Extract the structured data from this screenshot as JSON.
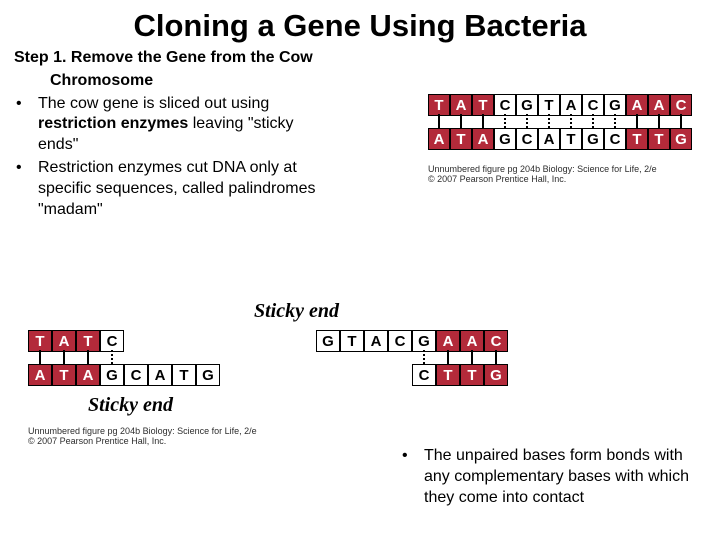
{
  "title": "Cloning a Gene Using Bacteria",
  "step": {
    "line1": "Step 1. Remove the Gene from the Cow",
    "line2": "Chromosome"
  },
  "bullets": {
    "b1a": "The cow gene is sliced out using",
    "b1b_bold": "restriction enzymes",
    "b1b_rest": " leaving \"sticky",
    "b1c": "ends\"",
    "b2a": "Restriction enzymes cut DNA only at",
    "b2b": "specific sequences, called palindromes",
    "b2c": "\"madam\""
  },
  "bottom_bullet": {
    "l1": "The unpaired bases form bonds with",
    "l2": "any complementary bases with which",
    "l3": "they come into contact"
  },
  "labels": {
    "sticky_end": "Sticky end"
  },
  "caption": {
    "l1": "Unnumbered figure pg 204b Biology: Science for Life, 2/e",
    "l2": "© 2007 Pearson Prentice Hall, Inc."
  },
  "colors": {
    "red": "#b32a3a",
    "white": "#ffffff",
    "black": "#000000"
  },
  "dna": {
    "top_full": {
      "top": [
        "T",
        "A",
        "T",
        "C",
        "G",
        "T",
        "A",
        "C",
        "G",
        "A",
        "A",
        "C"
      ],
      "bottom": [
        "A",
        "T",
        "A",
        "G",
        "C",
        "A",
        "T",
        "G",
        "C",
        "T",
        "T",
        "G"
      ],
      "colors_top": [
        "red",
        "red",
        "red",
        "white",
        "white",
        "white",
        "white",
        "white",
        "white",
        "red",
        "red",
        "red"
      ],
      "colors_bottom": [
        "red",
        "red",
        "red",
        "white",
        "white",
        "white",
        "white",
        "white",
        "white",
        "red",
        "red",
        "red"
      ],
      "conn": [
        "solid",
        "solid",
        "solid",
        "dashed",
        "dashed",
        "dashed",
        "dashed",
        "dashed",
        "dashed",
        "solid",
        "solid",
        "solid"
      ],
      "base_w": 22
    },
    "left_frag": {
      "top": [
        "T",
        "A",
        "T",
        "C",
        "",
        "",
        "",
        ""
      ],
      "bottom": [
        "A",
        "T",
        "A",
        "G",
        "C",
        "A",
        "T",
        "G"
      ],
      "colors_top": [
        "red",
        "red",
        "red",
        "white",
        "gap",
        "gap",
        "gap",
        "gap"
      ],
      "colors_bottom": [
        "red",
        "red",
        "red",
        "white",
        "white",
        "white",
        "white",
        "white"
      ],
      "conn": [
        "solid",
        "solid",
        "solid",
        "dashed",
        "none",
        "none",
        "none",
        "none"
      ],
      "base_w": 24
    },
    "right_frag": {
      "top": [
        "G",
        "T",
        "A",
        "C",
        "G",
        "A",
        "A",
        "C"
      ],
      "bottom": [
        "",
        "",
        "",
        "",
        "C",
        "T",
        "T",
        "G"
      ],
      "colors_top": [
        "white",
        "white",
        "white",
        "white",
        "white",
        "red",
        "red",
        "red"
      ],
      "colors_bottom": [
        "gap",
        "gap",
        "gap",
        "gap",
        "white",
        "red",
        "red",
        "red"
      ],
      "conn": [
        "none",
        "none",
        "none",
        "none",
        "dashed",
        "solid",
        "solid",
        "solid"
      ],
      "base_w": 24
    }
  }
}
